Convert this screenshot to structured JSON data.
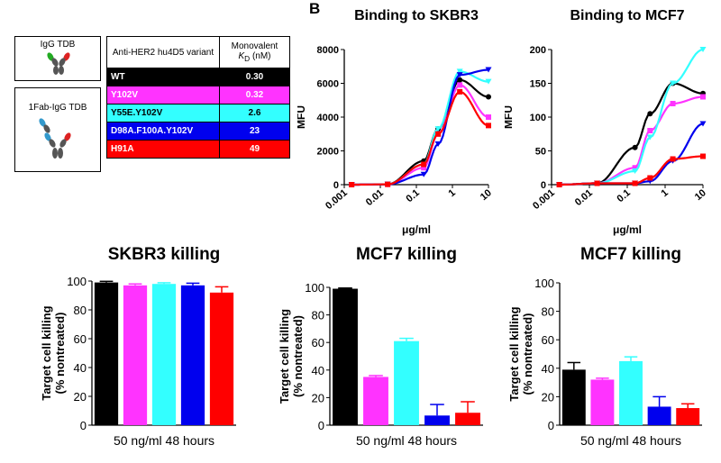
{
  "panel_label": "B",
  "legend": {
    "schematic_labels": [
      "IgG TDB",
      "1Fab-IgG TDB"
    ],
    "table": {
      "headers": [
        "Anti-HER2 hu4D5 variant",
        "Monovalent K_D (nM)"
      ],
      "header_col1": "Anti-HER2 hu4D5 variant",
      "header_col2_main": "Monovalent",
      "header_col2_k": "K",
      "header_col2_sub": "D",
      "header_col2_unit": " (nM)",
      "rows": [
        {
          "variant": "WT",
          "kd": "0.30",
          "color": "#000000",
          "text_color": "#ffffff"
        },
        {
          "variant": "Y102V",
          "kd": "0.32",
          "color": "#ff33ff",
          "text_color": "#ffffff"
        },
        {
          "variant": "Y55E.Y102V",
          "kd": "2.6",
          "color": "#33ffff",
          "text_color": "#000000"
        },
        {
          "variant": "D98A.F100A.Y102V",
          "kd": "23",
          "color": "#0000ee",
          "text_color": "#ffffff"
        },
        {
          "variant": "H91A",
          "kd": "49",
          "color": "#ff0000",
          "text_color": "#ffffff"
        }
      ]
    }
  },
  "chart_data": [
    {
      "type": "scatter",
      "title": "Binding to SKBR3",
      "xlabel": "μg/ml",
      "ylabel": "MFU",
      "x_scale": "log",
      "xlim": [
        0.001,
        10
      ],
      "ylim": [
        0,
        8000
      ],
      "x_ticks": [
        "0.001",
        "0.01",
        "0.1",
        "1",
        "10"
      ],
      "y_ticks": [
        "0",
        "2000",
        "4000",
        "6000",
        "8000"
      ],
      "series": [
        {
          "color": "#000000",
          "x": [
            0.0016,
            0.016,
            0.16,
            0.4,
            1.6,
            10
          ],
          "y": [
            0,
            20,
            1400,
            3300,
            6200,
            5200
          ]
        },
        {
          "color": "#ff33ff",
          "x": [
            0.0016,
            0.016,
            0.16,
            0.4,
            1.6,
            10
          ],
          "y": [
            0,
            20,
            1000,
            3000,
            5900,
            4000
          ]
        },
        {
          "color": "#33ffff",
          "x": [
            0.0016,
            0.016,
            0.16,
            0.4,
            1.6,
            10
          ],
          "y": [
            0,
            20,
            1200,
            3300,
            6700,
            6100
          ]
        },
        {
          "color": "#0000ee",
          "x": [
            0.0016,
            0.016,
            0.16,
            0.4,
            1.6,
            10
          ],
          "y": [
            0,
            20,
            600,
            2400,
            6500,
            6800
          ]
        },
        {
          "color": "#ff0000",
          "x": [
            0.0016,
            0.016,
            0.16,
            0.4,
            1.6,
            10
          ],
          "y": [
            0,
            20,
            1200,
            3000,
            5500,
            3500
          ]
        }
      ]
    },
    {
      "type": "scatter",
      "title": "Binding to MCF7",
      "xlabel": "μg/ml",
      "ylabel": "MFU",
      "x_scale": "log",
      "xlim": [
        0.001,
        10
      ],
      "ylim": [
        0,
        200
      ],
      "x_ticks": [
        "0.001",
        "0.01",
        "0.1",
        "1",
        "10"
      ],
      "y_ticks": [
        "0",
        "50",
        "100",
        "150",
        "200"
      ],
      "series": [
        {
          "color": "#000000",
          "x": [
            0.0016,
            0.016,
            0.16,
            0.4,
            1.6,
            10
          ],
          "y": [
            0,
            2,
            55,
            105,
            150,
            135
          ]
        },
        {
          "color": "#ff33ff",
          "x": [
            0.0016,
            0.016,
            0.16,
            0.4,
            1.6,
            10
          ],
          "y": [
            0,
            2,
            25,
            80,
            120,
            130
          ]
        },
        {
          "color": "#33ffff",
          "x": [
            0.0016,
            0.016,
            0.16,
            0.4,
            1.6,
            10
          ],
          "y": [
            0,
            2,
            20,
            70,
            150,
            200
          ]
        },
        {
          "color": "#0000ee",
          "x": [
            0.0016,
            0.016,
            0.16,
            0.4,
            1.6,
            10
          ],
          "y": [
            0,
            2,
            2,
            5,
            35,
            90
          ]
        },
        {
          "color": "#ff0000",
          "x": [
            0.0016,
            0.016,
            0.16,
            0.4,
            1.6,
            10
          ],
          "y": [
            0,
            2,
            2,
            10,
            38,
            42
          ]
        }
      ]
    },
    {
      "type": "bar",
      "title": "SKBR3 killing",
      "ylabel_line1": "Target cell killing",
      "ylabel_line2": "(% nontreated)",
      "xlabel": "50 ng/ml 48 hours",
      "ylim": [
        0,
        100
      ],
      "y_ticks": [
        "0",
        "20",
        "40",
        "60",
        "80",
        "100"
      ],
      "values": [
        99,
        97,
        98,
        97,
        92
      ],
      "errors": [
        0.8,
        1,
        0.8,
        1.5,
        4
      ],
      "colors": [
        "#000000",
        "#ff33ff",
        "#33ffff",
        "#0000ee",
        "#ff0000"
      ]
    },
    {
      "type": "bar",
      "title": "MCF7 killing",
      "ylabel_line1": "Target cell killing",
      "ylabel_line2": "(% nontreated)",
      "xlabel": "50 ng/ml 48 hours",
      "ylim": [
        0,
        100
      ],
      "y_ticks": [
        "0",
        "20",
        "40",
        "60",
        "80",
        "100"
      ],
      "values": [
        99,
        35,
        61,
        7,
        9
      ],
      "errors": [
        0.5,
        1,
        2,
        8,
        8
      ],
      "colors": [
        "#000000",
        "#ff33ff",
        "#33ffff",
        "#0000ee",
        "#ff0000"
      ]
    },
    {
      "type": "bar",
      "title": "MCF7 killing",
      "ylabel_line1": "Target cell killing",
      "ylabel_line2": "(% nontreated)",
      "xlabel": "50 ng/ml 48 hours",
      "ylim": [
        0,
        100
      ],
      "y_ticks": [
        "0",
        "20",
        "40",
        "60",
        "80",
        "100"
      ],
      "values": [
        39,
        32,
        45,
        13,
        12
      ],
      "errors": [
        5,
        1,
        3,
        7,
        3
      ],
      "colors": [
        "#000000",
        "#ff33ff",
        "#33ffff",
        "#0000ee",
        "#ff0000"
      ]
    }
  ]
}
